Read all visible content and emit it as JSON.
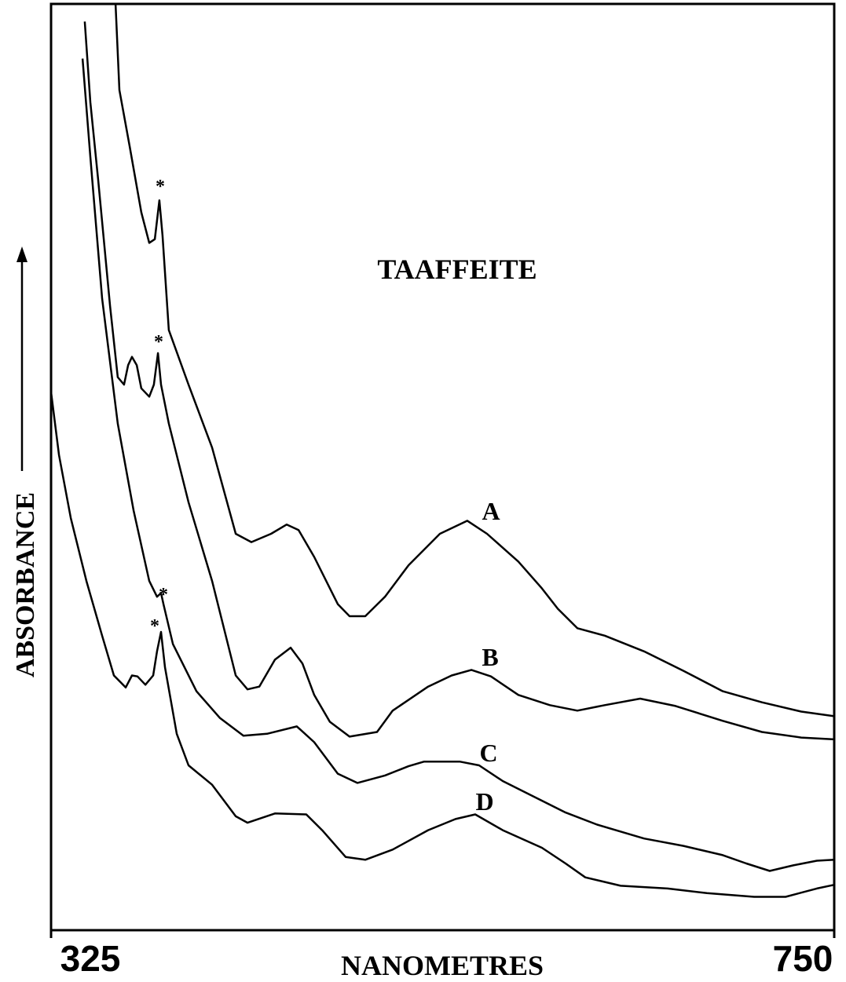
{
  "chart_data": {
    "type": "line",
    "title": "TAAFFEITE",
    "xlabel": "NANOMETRES",
    "ylabel": "ABSORBANCE",
    "xlim": [
      325,
      750
    ],
    "xticks": [
      325,
      750
    ],
    "ylim": [
      0,
      100
    ],
    "annotations": [
      "*",
      "*",
      "*",
      "*"
    ],
    "series": [
      {
        "name": "A",
        "color": "#000000",
        "x": [
          360.0,
          362.1,
          367.6,
          374.0,
          378.3,
          381.3,
          383.8,
          385.5,
          388.9,
          399.6,
          412.4,
          425.2,
          433.7,
          444.4,
          452.9,
          459.3,
          467.8,
          480.6,
          487.0,
          495.5,
          506.2,
          519.0,
          536.0,
          550.9,
          561.6,
          578.6,
          591.4,
          600.0,
          610.6,
          625.5,
          646.8,
          668.2,
          689.5,
          710.8,
          732.1,
          750
        ],
        "values": [
          100.0,
          90.7,
          84.7,
          77.5,
          74.2,
          74.6,
          78.8,
          75.0,
          64.8,
          58.9,
          52.1,
          42.8,
          41.9,
          42.8,
          43.8,
          43.2,
          40.3,
          35.2,
          33.9,
          33.9,
          36.0,
          39.4,
          42.8,
          44.2,
          42.8,
          39.8,
          36.9,
          34.7,
          32.6,
          31.8,
          30.1,
          28.0,
          25.8,
          24.6,
          23.6,
          23.1
        ]
      },
      {
        "name": "B",
        "color": "#000000",
        "x": [
          343.3,
          346.3,
          350.6,
          357.0,
          361.2,
          364.6,
          366.8,
          368.9,
          371.5,
          374.0,
          378.3,
          380.8,
          383.0,
          384.7,
          388.9,
          399.6,
          412.4,
          425.2,
          431.6,
          438.0,
          446.5,
          455.0,
          461.4,
          467.8,
          476.3,
          487.0,
          501.9,
          510.4,
          529.6,
          542.4,
          553.1,
          563.7,
          578.6,
          595.7,
          610.6,
          625.5,
          644.7,
          663.9,
          689.5,
          710.8,
          732.1,
          750
        ],
        "values": [
          98.1,
          89.4,
          80.9,
          67.4,
          59.7,
          58.9,
          61.0,
          61.9,
          61.0,
          58.5,
          57.6,
          58.9,
          62.3,
          58.9,
          54.7,
          46.2,
          37.7,
          27.5,
          26.0,
          26.3,
          29.2,
          30.5,
          28.8,
          25.4,
          22.5,
          20.9,
          21.4,
          23.7,
          26.3,
          27.5,
          28.1,
          27.4,
          25.4,
          24.3,
          23.7,
          24.3,
          25.0,
          24.2,
          22.6,
          21.4,
          20.8,
          20.6
        ]
      },
      {
        "name": "C",
        "color": "#000000",
        "x": [
          342.1,
          346.3,
          352.7,
          361.2,
          369.8,
          378.3,
          382.5,
          384.7,
          386.0,
          391.1,
          403.9,
          416.7,
          429.4,
          442.2,
          458.4,
          467.8,
          480.6,
          491.2,
          506.2,
          519.0,
          527.5,
          546.7,
          557.3,
          570.1,
          587.2,
          604.2,
          621.3,
          638.3,
          646.8,
          668.2,
          689.5,
          702.3,
          715.0,
          727.8,
          740.6,
          750
        ],
        "values": [
          94.1,
          83.5,
          68.2,
          54.7,
          45.3,
          37.7,
          36.0,
          36.4,
          35.2,
          30.9,
          25.8,
          22.9,
          21.0,
          21.2,
          22.0,
          20.3,
          16.9,
          15.9,
          16.7,
          17.7,
          18.2,
          18.2,
          17.8,
          16.1,
          14.4,
          12.7,
          11.4,
          10.4,
          9.9,
          9.1,
          8.1,
          7.2,
          6.4,
          7.0,
          7.5,
          7.6
        ]
      },
      {
        "name": "D",
        "color": "#000000",
        "x": [
          325,
          329.3,
          335.7,
          344.2,
          352.7,
          359.1,
          365.5,
          368.9,
          371.9,
          376.2,
          380.4,
          382.5,
          384.7,
          386.8,
          393.2,
          399.6,
          412.4,
          425.2,
          431.6,
          446.5,
          463.5,
          472.1,
          484.9,
          495.5,
          510.4,
          529.6,
          544.5,
          555.2,
          570.1,
          591.4,
          604.2,
          614.9,
          634.1,
          659.6,
          680.9,
          706.5,
          723.6,
          740.6,
          750
        ],
        "values": [
          58.1,
          51.3,
          44.5,
          37.7,
          31.8,
          27.5,
          26.2,
          27.5,
          27.4,
          26.5,
          27.5,
          30.1,
          32.2,
          28.4,
          21.2,
          17.8,
          15.7,
          12.3,
          11.6,
          12.6,
          12.5,
          10.8,
          7.9,
          7.6,
          8.7,
          10.8,
          12.0,
          12.5,
          10.8,
          8.9,
          7.2,
          5.7,
          4.8,
          4.5,
          4.0,
          3.6,
          3.6,
          4.5,
          4.9
        ]
      }
    ]
  }
}
